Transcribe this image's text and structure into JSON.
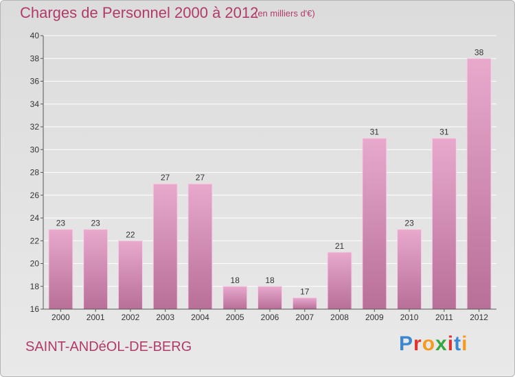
{
  "header": {
    "title": "Charges de Personnel 2000 à 2012",
    "subtitle": "(en milliers d'€)"
  },
  "footer": {
    "commune": "SAINT-ANDéOL-DE-BERG",
    "brand_letters": [
      "P",
      "r",
      "o",
      "x",
      "i",
      "t",
      "i"
    ]
  },
  "colors": {
    "bar_top": "#e8a9cd",
    "bar_bottom": "#b86f98",
    "text_accent": "#b03a6a",
    "grid": "#ffffff",
    "axis": "#555555"
  },
  "chart_data": {
    "type": "bar",
    "title": "Charges de Personnel 2000 à 2012",
    "subtitle": "(en milliers d'€)",
    "xlabel": "",
    "ylabel": "",
    "categories": [
      "2000",
      "2001",
      "2002",
      "2003",
      "2004",
      "2005",
      "2006",
      "2007",
      "2008",
      "2009",
      "2010",
      "2011",
      "2012"
    ],
    "values": [
      23,
      23,
      22,
      27,
      27,
      18,
      18,
      17,
      21,
      31,
      23,
      31,
      38
    ],
    "ylim": [
      16,
      40
    ],
    "yticks": [
      16,
      18,
      20,
      22,
      24,
      26,
      28,
      30,
      32,
      34,
      36,
      38,
      40
    ],
    "grid": true,
    "legend": "none"
  }
}
